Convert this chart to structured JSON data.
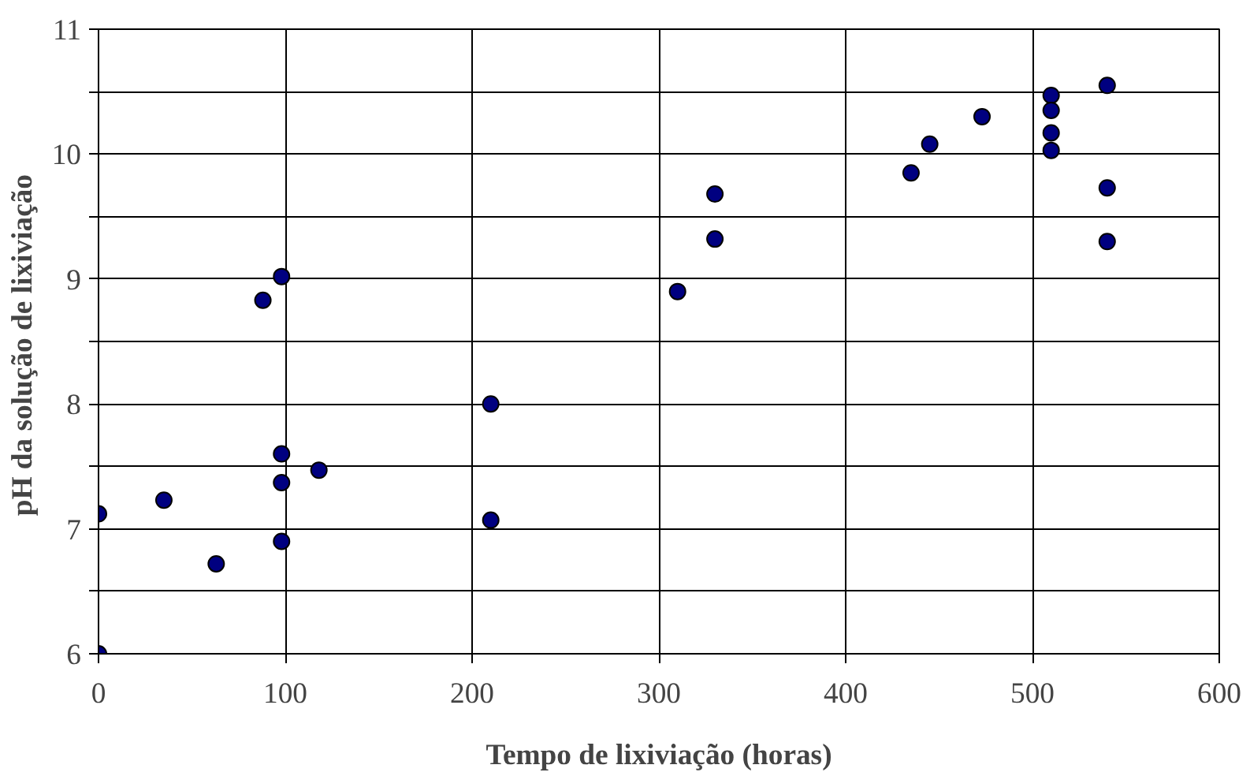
{
  "chart_data": {
    "type": "scatter",
    "xlabel": "Tempo de lixiviação (horas)",
    "ylabel": "pH  da solução de lixiviação",
    "x": [
      0,
      0,
      35,
      63,
      88,
      98,
      98,
      98,
      98,
      118,
      210,
      210,
      310,
      330,
      330,
      435,
      445,
      473,
      510,
      510,
      510,
      510,
      540,
      540,
      540
    ],
    "series": [
      {
        "color": "#000080",
        "values": [
          6.0,
          7.12,
          7.23,
          6.72,
          8.83,
          9.02,
          7.6,
          7.37,
          6.9,
          7.47,
          8.0,
          7.07,
          8.9,
          9.68,
          9.32,
          9.85,
          10.08,
          10.3,
          10.47,
          10.35,
          10.17,
          10.03,
          10.55,
          9.73,
          9.3
        ]
      }
    ],
    "xlim": [
      0,
      600
    ],
    "xticks": [
      0,
      100,
      200,
      300,
      400,
      500,
      600
    ],
    "ylim": [
      6,
      11
    ],
    "yticks": [
      6,
      {
        "value": 6.5,
        "label": null
      },
      7,
      {
        "value": 7.5,
        "label": null
      },
      8,
      {
        "value": 8.5,
        "label": null
      },
      9,
      {
        "value": 9.5,
        "label": null
      },
      10,
      {
        "value": 10.5,
        "label": null
      },
      11
    ],
    "grid": true,
    "marker": "circle"
  }
}
